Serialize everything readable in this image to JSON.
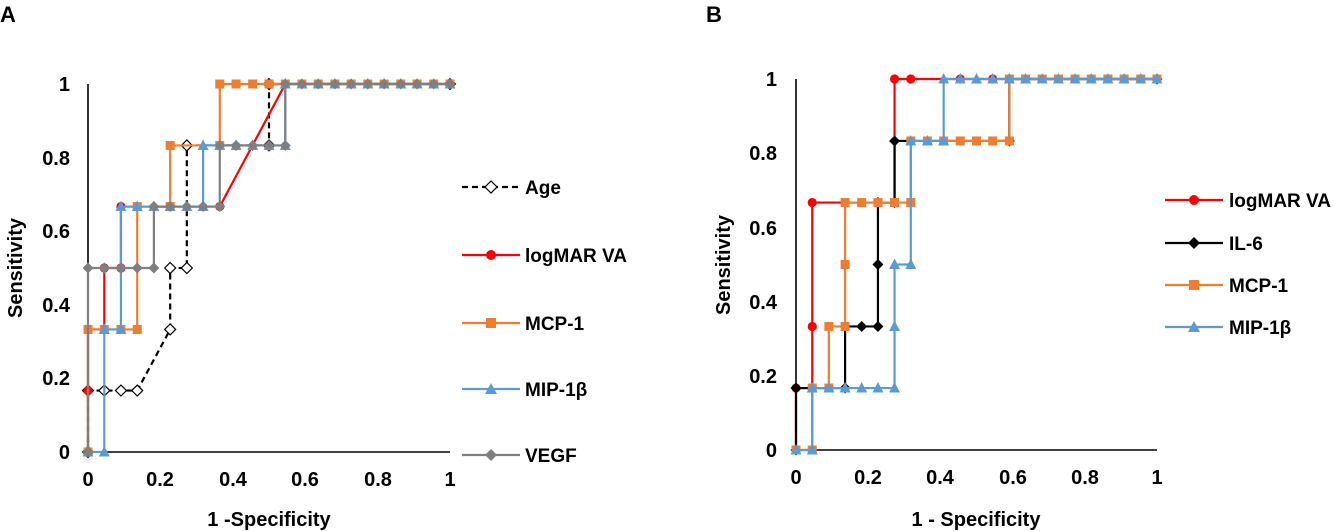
{
  "chart_data": [
    {
      "type": "line",
      "panel_label": "A",
      "xlabel": "1 -Specificity",
      "ylabel": "Sensitivity",
      "xlim": [
        0,
        1
      ],
      "ylim": [
        0,
        1
      ],
      "xticks": [
        "0",
        "0.2",
        "0.4",
        "0.6",
        "0.8",
        "1"
      ],
      "yticks": [
        "0",
        "0.2",
        "0.4",
        "0.6",
        "0.8",
        "1"
      ],
      "legend_position": "right",
      "series": [
        {
          "name": "Age",
          "color": "#000000",
          "dash": true,
          "marker": "diamond-open",
          "x": [
            0,
            0,
            0.045,
            0.091,
            0.136,
            0.227,
            0.227,
            0.273,
            0.273,
            0.5,
            0.5,
            1
          ],
          "y": [
            0,
            0.167,
            0.167,
            0.167,
            0.167,
            0.333,
            0.5,
            0.5,
            0.833,
            0.833,
            1,
            1
          ]
        },
        {
          "name": "logMAR VA",
          "color": "#ff0000",
          "dash": false,
          "marker": "circle",
          "x": [
            0,
            0,
            0,
            0.045,
            0.045,
            0.091,
            0.091,
            0.364,
            0.545,
            1
          ],
          "y": [
            0,
            0.167,
            0.333,
            0.333,
            0.5,
            0.5,
            0.667,
            0.667,
            1,
            1
          ]
        },
        {
          "name": "MCP-1",
          "color": "#ed7d31",
          "dash": false,
          "marker": "square",
          "x": [
            0,
            0,
            0.045,
            0.091,
            0.136,
            0.136,
            0.227,
            0.227,
            0.364,
            0.364,
            0.409,
            0.455,
            0.5,
            0.545,
            0.591,
            0.636,
            0.682,
            0.727,
            0.773,
            0.818,
            0.864,
            0.909,
            0.955,
            1
          ],
          "y": [
            0,
            0.333,
            0.333,
            0.333,
            0.333,
            0.667,
            0.667,
            0.833,
            0.833,
            1,
            1,
            1,
            1,
            1,
            1,
            1,
            1,
            1,
            1,
            1,
            1,
            1,
            1,
            1
          ]
        },
        {
          "name": "MIP-1β",
          "color": "#5b9bd5",
          "dash": false,
          "marker": "triangle",
          "x": [
            0,
            0.045,
            0.045,
            0.091,
            0.091,
            0.136,
            0.182,
            0.227,
            0.273,
            0.318,
            0.318,
            0.364,
            0.409,
            0.455,
            0.5,
            0.545,
            0.545,
            0.591,
            0.636,
            0.682,
            0.727,
            0.773,
            0.818,
            0.864,
            0.909,
            0.955,
            1
          ],
          "y": [
            0,
            0,
            0.333,
            0.333,
            0.667,
            0.667,
            0.667,
            0.667,
            0.667,
            0.667,
            0.833,
            0.833,
            0.833,
            0.833,
            0.833,
            0.833,
            1,
            1,
            1,
            1,
            1,
            1,
            1,
            1,
            1,
            1,
            1
          ]
        },
        {
          "name": "VEGF",
          "color": "#7f7f7f",
          "dash": false,
          "marker": "diamond",
          "x": [
            0,
            0,
            0.045,
            0.091,
            0.136,
            0.182,
            0.182,
            0.227,
            0.273,
            0.318,
            0.364,
            0.364,
            0.409,
            0.455,
            0.5,
            0.545,
            0.545,
            0.591,
            0.636,
            0.682,
            0.727,
            0.773,
            0.818,
            0.864,
            0.909,
            0.955,
            1
          ],
          "y": [
            0,
            0.5,
            0.5,
            0.5,
            0.5,
            0.5,
            0.667,
            0.667,
            0.667,
            0.667,
            0.667,
            0.833,
            0.833,
            0.833,
            0.833,
            0.833,
            1,
            1,
            1,
            1,
            1,
            1,
            1,
            1,
            1,
            1,
            1
          ]
        }
      ]
    },
    {
      "type": "line",
      "panel_label": "B",
      "xlabel": "1 - Specificity",
      "ylabel": "Sensitivity",
      "xlim": [
        0,
        1
      ],
      "ylim": [
        0,
        1
      ],
      "xticks": [
        "0",
        "0.2",
        "0.4",
        "0.6",
        "0.8",
        "1"
      ],
      "yticks": [
        "0",
        "0.2",
        "0.4",
        "0.6",
        "0.8",
        "1"
      ],
      "legend_position": "right",
      "series": [
        {
          "name": "logMAR VA",
          "color": "#ff0000",
          "dash": false,
          "marker": "circle",
          "x": [
            0,
            0,
            0.045,
            0.045,
            0.045,
            0.273,
            0.273,
            0.318,
            0.455,
            0.545,
            1
          ],
          "y": [
            0,
            0.167,
            0.167,
            0.333,
            0.667,
            0.667,
            1,
            1,
            1,
            1,
            1
          ]
        },
        {
          "name": "IL-6",
          "color": "#000000",
          "dash": false,
          "marker": "diamond",
          "x": [
            0,
            0,
            0.136,
            0.136,
            0.182,
            0.227,
            0.227,
            0.227,
            0.273,
            0.273,
            0.591,
            0.591,
            1
          ],
          "y": [
            0,
            0.167,
            0.167,
            0.333,
            0.333,
            0.333,
            0.5,
            0.667,
            0.667,
            0.833,
            0.833,
            1,
            1
          ]
        },
        {
          "name": "MCP-1",
          "color": "#ed7d31",
          "dash": false,
          "marker": "square",
          "x": [
            0,
            0.045,
            0.045,
            0.091,
            0.091,
            0.136,
            0.136,
            0.136,
            0.182,
            0.227,
            0.273,
            0.318,
            0.318,
            0.364,
            0.409,
            0.455,
            0.5,
            0.545,
            0.591,
            0.591,
            0.636,
            0.682,
            0.727,
            0.773,
            0.818,
            0.864,
            0.909,
            0.955,
            1
          ],
          "y": [
            0,
            0,
            0.167,
            0.167,
            0.333,
            0.333,
            0.5,
            0.667,
            0.667,
            0.667,
            0.667,
            0.667,
            0.833,
            0.833,
            0.833,
            0.833,
            0.833,
            0.833,
            0.833,
            1,
            1,
            1,
            1,
            1,
            1,
            1,
            1,
            1,
            1
          ]
        },
        {
          "name": "MIP-1β",
          "color": "#5b9bd5",
          "dash": false,
          "marker": "triangle",
          "x": [
            0,
            0.045,
            0.045,
            0.091,
            0.136,
            0.182,
            0.227,
            0.273,
            0.273,
            0.273,
            0.318,
            0.318,
            0.364,
            0.409,
            0.409,
            0.455,
            0.5,
            0.545,
            0.591,
            0.636,
            0.682,
            0.727,
            0.773,
            0.818,
            0.864,
            0.909,
            0.955,
            1
          ],
          "y": [
            0,
            0,
            0.167,
            0.167,
            0.167,
            0.167,
            0.167,
            0.167,
            0.333,
            0.5,
            0.5,
            0.833,
            0.833,
            0.833,
            1,
            1,
            1,
            1,
            1,
            1,
            1,
            1,
            1,
            1,
            1,
            1,
            1,
            1
          ]
        }
      ]
    }
  ]
}
